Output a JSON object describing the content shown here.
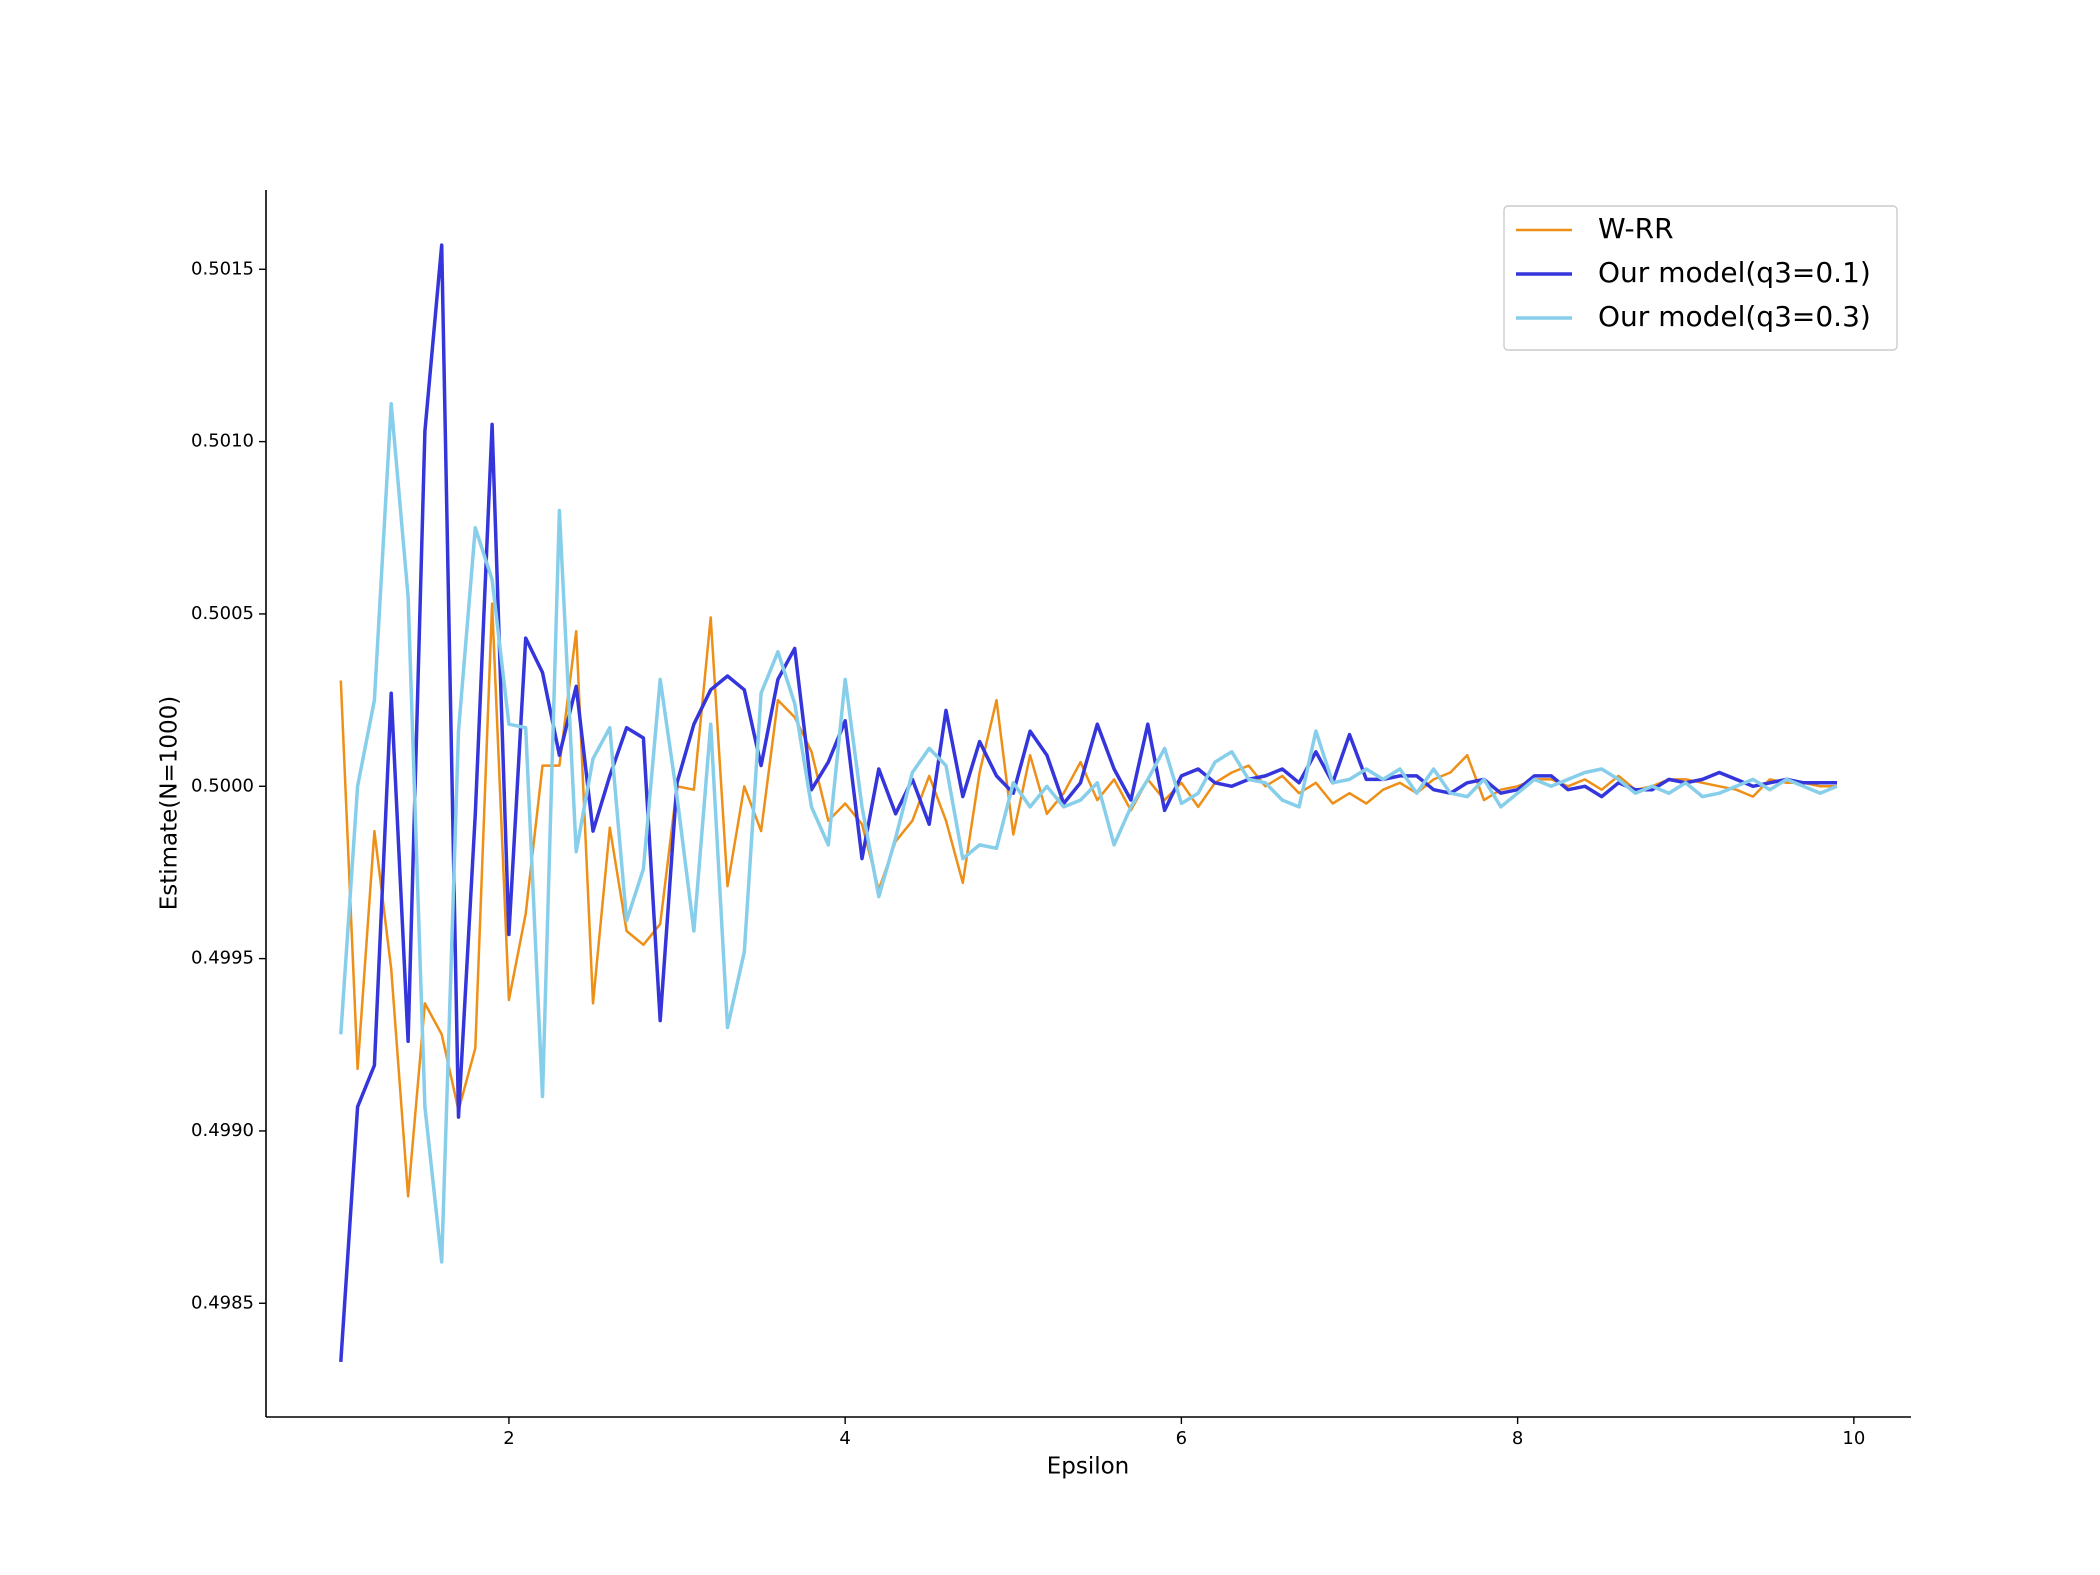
{
  "chart_data": {
    "type": "line",
    "x_label": "Epsilon",
    "y_label": "Estimate(N=1000)",
    "x": [
      1,
      1.1,
      1.2,
      1.3,
      1.4,
      1.5,
      1.6,
      1.7,
      1.8,
      1.9,
      2,
      2.1,
      2.2,
      2.3,
      2.4,
      2.5,
      2.6,
      2.7,
      2.8,
      2.9,
      3,
      3.1,
      3.2,
      3.3,
      3.4,
      3.5,
      3.6,
      3.7,
      3.8,
      3.9,
      4,
      4.1,
      4.2,
      4.3,
      4.4,
      4.5,
      4.6,
      4.7,
      4.8,
      4.9,
      5,
      5.1,
      5.2,
      5.3,
      5.4,
      5.5,
      5.6,
      5.7,
      5.8,
      5.9,
      6,
      6.1,
      6.2,
      6.3,
      6.4,
      6.5,
      6.6,
      6.7,
      6.8,
      6.9,
      7,
      7.1,
      7.2,
      7.3,
      7.4,
      7.5,
      7.6,
      7.7,
      7.8,
      7.9,
      8,
      8.1,
      8.2,
      8.3,
      8.4,
      8.5,
      8.6,
      8.7,
      8.8,
      8.9,
      9,
      9.1,
      9.2,
      9.3,
      9.4,
      9.5,
      9.6,
      9.7,
      9.8,
      9.9
    ],
    "series": [
      {
        "name": "W-RR",
        "color": "#ee8f17",
        "width": 2.5,
        "values": [
          0.500307,
          0.49918,
          0.49987,
          0.49947,
          0.49881,
          0.49937,
          0.49928,
          0.49906,
          0.49924,
          0.50053,
          0.49938,
          0.49963,
          0.50006,
          0.50006,
          0.50045,
          0.49937,
          0.49988,
          0.49958,
          0.49954,
          0.4996,
          0.5,
          0.49999,
          0.50049,
          0.49971,
          0.5,
          0.49987,
          0.50025,
          0.5002,
          0.5001,
          0.4999,
          0.49995,
          0.49989,
          0.4997,
          0.49984,
          0.4999,
          0.50003,
          0.4999,
          0.49972,
          0.50004,
          0.50025,
          0.49986,
          0.50009,
          0.49992,
          0.49998,
          0.50007,
          0.49996,
          0.50002,
          0.49993,
          0.50002,
          0.49996,
          0.50001,
          0.49994,
          0.50001,
          0.50004,
          0.50006,
          0.5,
          0.50003,
          0.49998,
          0.50001,
          0.49995,
          0.49998,
          0.49995,
          0.49999,
          0.50001,
          0.49998,
          0.50002,
          0.50004,
          0.50009,
          0.49996,
          0.49999,
          0.5,
          0.50002,
          0.50002,
          0.5,
          0.50002,
          0.49999,
          0.50003,
          0.49999,
          0.5,
          0.50002,
          0.50002,
          0.50001,
          0.5,
          0.49999,
          0.49997,
          0.50002,
          0.50001,
          0.50001,
          0.5,
          0.5
        ]
      },
      {
        "name": "Our model(q3=0.1)",
        "color": "#3535dc",
        "width": 3.5,
        "values": [
          0.49833,
          0.49907,
          0.49919,
          0.50027,
          0.49926,
          0.50103,
          0.50157,
          0.49904,
          0.49992,
          0.50105,
          0.49957,
          0.50043,
          0.50033,
          0.50009,
          0.50029,
          0.49987,
          0.50003,
          0.50017,
          0.50014,
          0.49932,
          0.50001,
          0.50018,
          0.50028,
          0.50032,
          0.50028,
          0.50006,
          0.50031,
          0.5004,
          0.49999,
          0.50007,
          0.50019,
          0.49979,
          0.50005,
          0.49992,
          0.50002,
          0.49989,
          0.50022,
          0.49997,
          0.50013,
          0.50003,
          0.49998,
          0.50016,
          0.50009,
          0.49995,
          0.50001,
          0.50018,
          0.50005,
          0.49996,
          0.50018,
          0.49993,
          0.50003,
          0.50005,
          0.50001,
          0.5,
          0.50002,
          0.50003,
          0.50005,
          0.50001,
          0.5001,
          0.50001,
          0.50015,
          0.50002,
          0.50002,
          0.50003,
          0.50003,
          0.49999,
          0.49998,
          0.50001,
          0.50002,
          0.49998,
          0.49999,
          0.50003,
          0.50003,
          0.49999,
          0.5,
          0.49997,
          0.50001,
          0.49999,
          0.49999,
          0.50002,
          0.50001,
          0.50002,
          0.50004,
          0.50002,
          0.5,
          0.50001,
          0.50002,
          0.50001,
          0.50001,
          0.50001
        ]
      },
      {
        "name": "Our model(q3=0.3)",
        "color": "#87ceeb",
        "width": 3.5,
        "values": [
          0.49928,
          0.5,
          0.50025,
          0.50111,
          0.50055,
          0.49907,
          0.49862,
          0.50016,
          0.50075,
          0.5006,
          0.50018,
          0.50017,
          0.4991,
          0.5008,
          0.49981,
          0.50008,
          0.50017,
          0.49961,
          0.49976,
          0.50031,
          0.49997,
          0.49958,
          0.50018,
          0.4993,
          0.49952,
          0.50027,
          0.50039,
          0.50024,
          0.49994,
          0.49983,
          0.50031,
          0.49994,
          0.49968,
          0.49985,
          0.50004,
          0.50011,
          0.50006,
          0.49979,
          0.49983,
          0.49982,
          0.50001,
          0.49994,
          0.5,
          0.49994,
          0.49996,
          0.50001,
          0.49983,
          0.49994,
          0.50002,
          0.50011,
          0.49995,
          0.49998,
          0.50007,
          0.5001,
          0.50002,
          0.50001,
          0.49996,
          0.49994,
          0.50016,
          0.50001,
          0.50002,
          0.50005,
          0.50002,
          0.50005,
          0.49998,
          0.50005,
          0.49998,
          0.49997,
          0.50002,
          0.49994,
          0.49998,
          0.50002,
          0.5,
          0.50002,
          0.50004,
          0.50005,
          0.50002,
          0.49998,
          0.5,
          0.49998,
          0.50001,
          0.49997,
          0.49998,
          0.5,
          0.50002,
          0.49999,
          0.50002,
          0.5,
          0.49998,
          0.5
        ]
      }
    ],
    "xlim": [
      0.555,
      10.34
    ],
    "ylim": [
      0.49817,
      0.50173
    ],
    "xticks": [
      2,
      4,
      6,
      8,
      10
    ],
    "yticks": [
      0.4985,
      {
        "value": 0.499,
        "label": "0.4990"
      },
      0.4995,
      {
        "value": 0.5,
        "label": "0.5000"
      },
      0.5005,
      {
        "value": 0.501,
        "label": "0.5010"
      },
      0.5015
    ],
    "grid": false,
    "legend": "upper right"
  }
}
